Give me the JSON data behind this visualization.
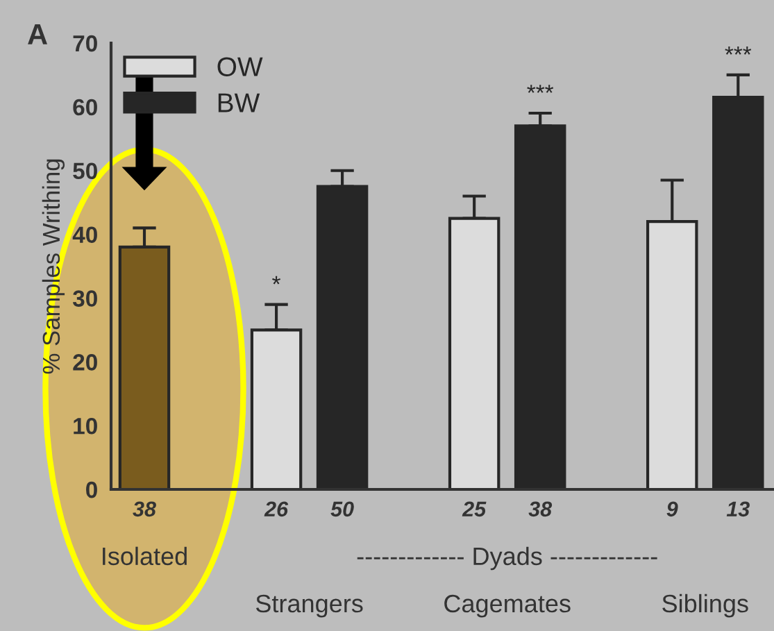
{
  "chart_data": {
    "type": "bar",
    "title": "A",
    "ylabel": "% Samples Writhing",
    "categories": [
      "38",
      null,
      "26",
      "50",
      null,
      "25",
      "38",
      null,
      "9",
      "13"
    ],
    "series": [
      {
        "color": "#7a5c1e",
        "values": [
          38,
          null,
          null,
          null,
          null,
          null,
          null,
          null,
          null,
          null
        ],
        "errors": [
          3,
          null,
          null,
          null,
          null,
          null,
          null,
          null,
          null,
          null
        ]
      },
      {
        "name": "OW",
        "color": "#dcdcdc",
        "values": [
          null,
          null,
          25,
          null,
          null,
          42.5,
          null,
          null,
          42,
          null
        ],
        "errors": [
          null,
          null,
          4,
          null,
          null,
          3.5,
          null,
          null,
          6.5,
          null
        ],
        "value_labels": [
          null,
          null,
          "*",
          null,
          null,
          null,
          null,
          null,
          null,
          null
        ]
      },
      {
        "name": "BW",
        "color": "#262626",
        "values": [
          null,
          null,
          null,
          47.5,
          null,
          null,
          57,
          null,
          null,
          61.5
        ],
        "errors": [
          null,
          null,
          null,
          2.5,
          null,
          null,
          2,
          null,
          null,
          3.5
        ],
        "value_labels": [
          null,
          null,
          null,
          null,
          null,
          null,
          "***",
          null,
          null,
          "***"
        ]
      }
    ],
    "ylim": [
      0,
      70
    ],
    "yticks": [
      0,
      10,
      20,
      30,
      40,
      50,
      60,
      70
    ],
    "legend": "top left",
    "grid": false,
    "annotations": [
      "Isolated",
      "------------- Dyads -------------",
      "Strangers",
      "Cagemates",
      "Siblings"
    ]
  }
}
